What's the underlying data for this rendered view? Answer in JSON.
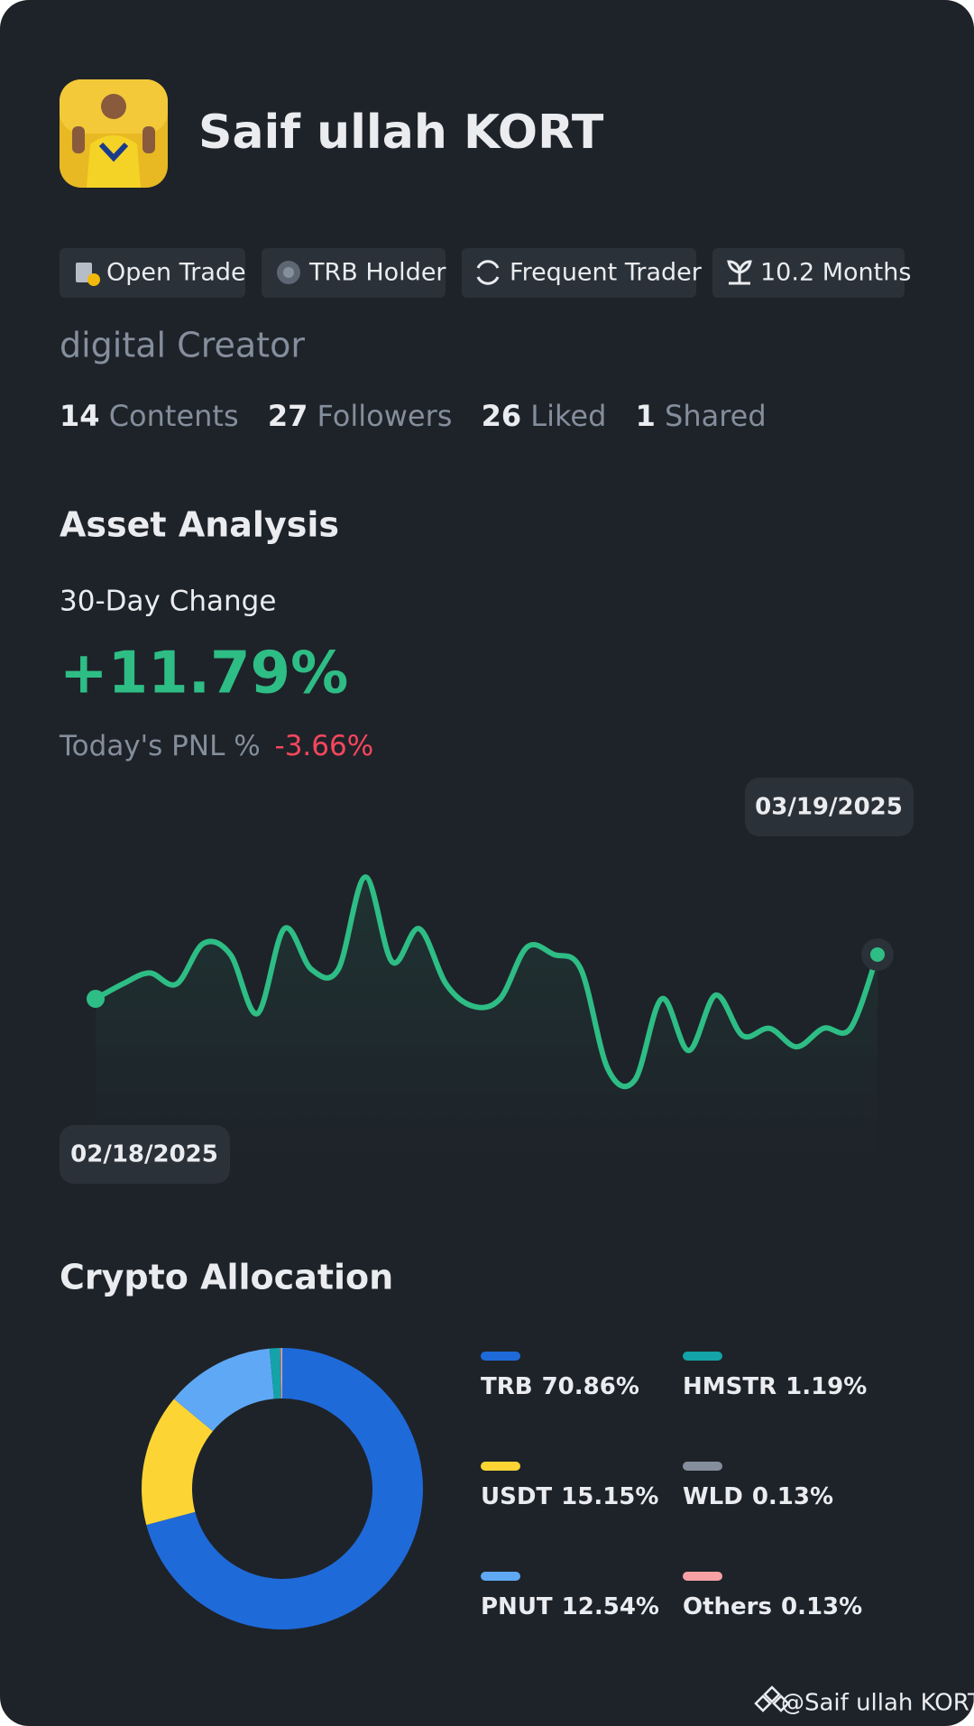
{
  "profile": {
    "name": "Saif ullah KORT",
    "badges": [
      "Open Trade",
      "TRB Holder",
      "Frequent Trader",
      "10.2 Months"
    ],
    "bio": "digital Creator",
    "stats": [
      {
        "value": 14,
        "label": "Contents"
      },
      {
        "value": 27,
        "label": "Followers"
      },
      {
        "value": 26,
        "label": "Liked"
      },
      {
        "value": 1,
        "label": "Shared"
      }
    ]
  },
  "asset_analysis": {
    "title": "Asset Analysis",
    "change_label": "30-Day Change",
    "change_value": "+11.79%",
    "pnl_label": "Today's PNL %",
    "pnl_value": "-3.66%"
  },
  "allocation_title": "Crypto Allocation",
  "watermark": "@Saif ullah KORT",
  "chart_data": [
    {
      "type": "line",
      "categories": [
        "02/18/2025",
        null,
        null,
        null,
        null,
        null,
        null,
        null,
        null,
        null,
        null,
        null,
        null,
        null,
        null,
        null,
        null,
        null,
        null,
        null,
        null,
        null,
        null,
        null,
        null,
        null,
        null,
        null,
        null,
        "03/19/2025"
      ],
      "values": [
        44,
        48,
        51,
        48,
        59,
        56,
        40,
        63,
        52,
        52,
        77,
        54,
        63,
        48,
        42,
        44,
        58,
        56,
        52,
        25,
        22,
        44,
        30,
        45,
        34,
        36,
        31,
        36,
        36,
        56
      ],
      "color": "#2ebd85",
      "ylim": [
        0,
        100
      ]
    },
    {
      "type": "donut",
      "series": [
        {
          "name": "TRB",
          "color": "#1f6ad9",
          "value": 70.86,
          "value_label": "70.86%"
        },
        {
          "name": "USDT",
          "color": "#fcd535",
          "value": 15.15,
          "value_label": "15.15%"
        },
        {
          "name": "PNUT",
          "color": "#5fa8f5",
          "value": 12.54,
          "value_label": "12.54%"
        },
        {
          "name": "HMSTR",
          "color": "#13a3a8",
          "value": 1.19,
          "value_label": "1.19%"
        },
        {
          "name": "WLD",
          "color": "#848e9c",
          "value": 0.13,
          "value_label": "0.13%"
        },
        {
          "name": "Others",
          "color": "#f7a1a5",
          "value": 0.13,
          "value_label": "0.13%"
        }
      ]
    }
  ]
}
